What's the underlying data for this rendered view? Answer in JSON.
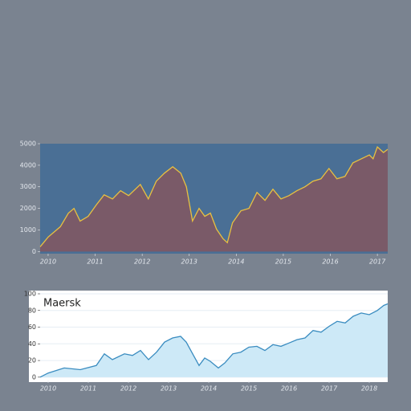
{
  "chart_data": [
    {
      "type": "area",
      "color": "#e8c040",
      "fill_color": "#7a5a68",
      "x": [
        2009.83,
        2010.0,
        2010.26,
        2010.43,
        2010.55,
        2010.68,
        2010.85,
        2011.02,
        2011.19,
        2011.37,
        2011.54,
        2011.71,
        2011.96,
        2012.13,
        2012.3,
        2012.47,
        2012.65,
        2012.82,
        2012.94,
        2013.07,
        2013.21,
        2013.33,
        2013.45,
        2013.58,
        2013.72,
        2013.81,
        2013.92,
        2014.1,
        2014.27,
        2014.44,
        2014.61,
        2014.78,
        2014.95,
        2015.12,
        2015.29,
        2015.46,
        2015.63,
        2015.8,
        2015.97,
        2016.14,
        2016.31,
        2016.48,
        2016.66,
        2016.83,
        2016.91,
        2017.0,
        2017.13,
        2017.22
      ],
      "values": [
        220,
        670,
        1150,
        1780,
        2000,
        1410,
        1630,
        2150,
        2630,
        2440,
        2820,
        2590,
        3110,
        2440,
        3260,
        3630,
        3930,
        3630,
        3000,
        1410,
        2000,
        1630,
        1780,
        1040,
        590,
        410,
        1330,
        1890,
        2000,
        2740,
        2370,
        2890,
        2440,
        2590,
        2820,
        3000,
        3260,
        3370,
        3850,
        3370,
        3480,
        4110,
        4300,
        4480,
        4300,
        4850,
        4590,
        4740
      ],
      "xlim": [
        2009.83,
        2017.22
      ],
      "xticks": [
        2010,
        2011,
        2012,
        2013,
        2014,
        2015,
        2016,
        2017
      ],
      "ylim": [
        -100,
        5000
      ],
      "yticks": [
        0,
        1000,
        2000,
        3000,
        4000,
        5000
      ],
      "grid": false
    },
    {
      "type": "area",
      "title": "Maersk",
      "color": "#3a8cc0",
      "fill_color": "#cde9f7",
      "x": [
        2009.8,
        2010.0,
        2010.4,
        2010.8,
        2011.2,
        2011.4,
        2011.6,
        2011.9,
        2012.1,
        2012.3,
        2012.5,
        2012.7,
        2012.9,
        2013.1,
        2013.3,
        2013.44,
        2013.6,
        2013.76,
        2013.9,
        2014.04,
        2014.24,
        2014.4,
        2014.6,
        2014.8,
        2015.0,
        2015.2,
        2015.4,
        2015.6,
        2015.8,
        2016.0,
        2016.2,
        2016.4,
        2016.6,
        2016.8,
        2017.0,
        2017.2,
        2017.4,
        2017.6,
        2017.8,
        2018.0,
        2018.2,
        2018.36,
        2018.46
      ],
      "values": [
        0,
        5,
        11,
        9,
        14,
        28,
        21,
        28,
        26,
        32,
        21,
        30,
        42,
        47,
        49,
        42,
        28,
        14,
        23,
        19,
        11,
        17,
        28,
        30,
        36,
        37,
        32,
        39,
        37,
        41,
        45,
        47,
        56,
        54,
        61,
        67,
        65,
        73,
        77,
        75,
        80,
        86,
        88
      ],
      "xlim": [
        2009.8,
        2018.46
      ],
      "xticks": [
        2010,
        2011,
        2012,
        2013,
        2014,
        2015,
        2016,
        2017,
        2018
      ],
      "ylim": [
        -4,
        100
      ],
      "yticks": [
        0,
        20,
        40,
        60,
        80,
        100
      ],
      "grid": true
    }
  ]
}
